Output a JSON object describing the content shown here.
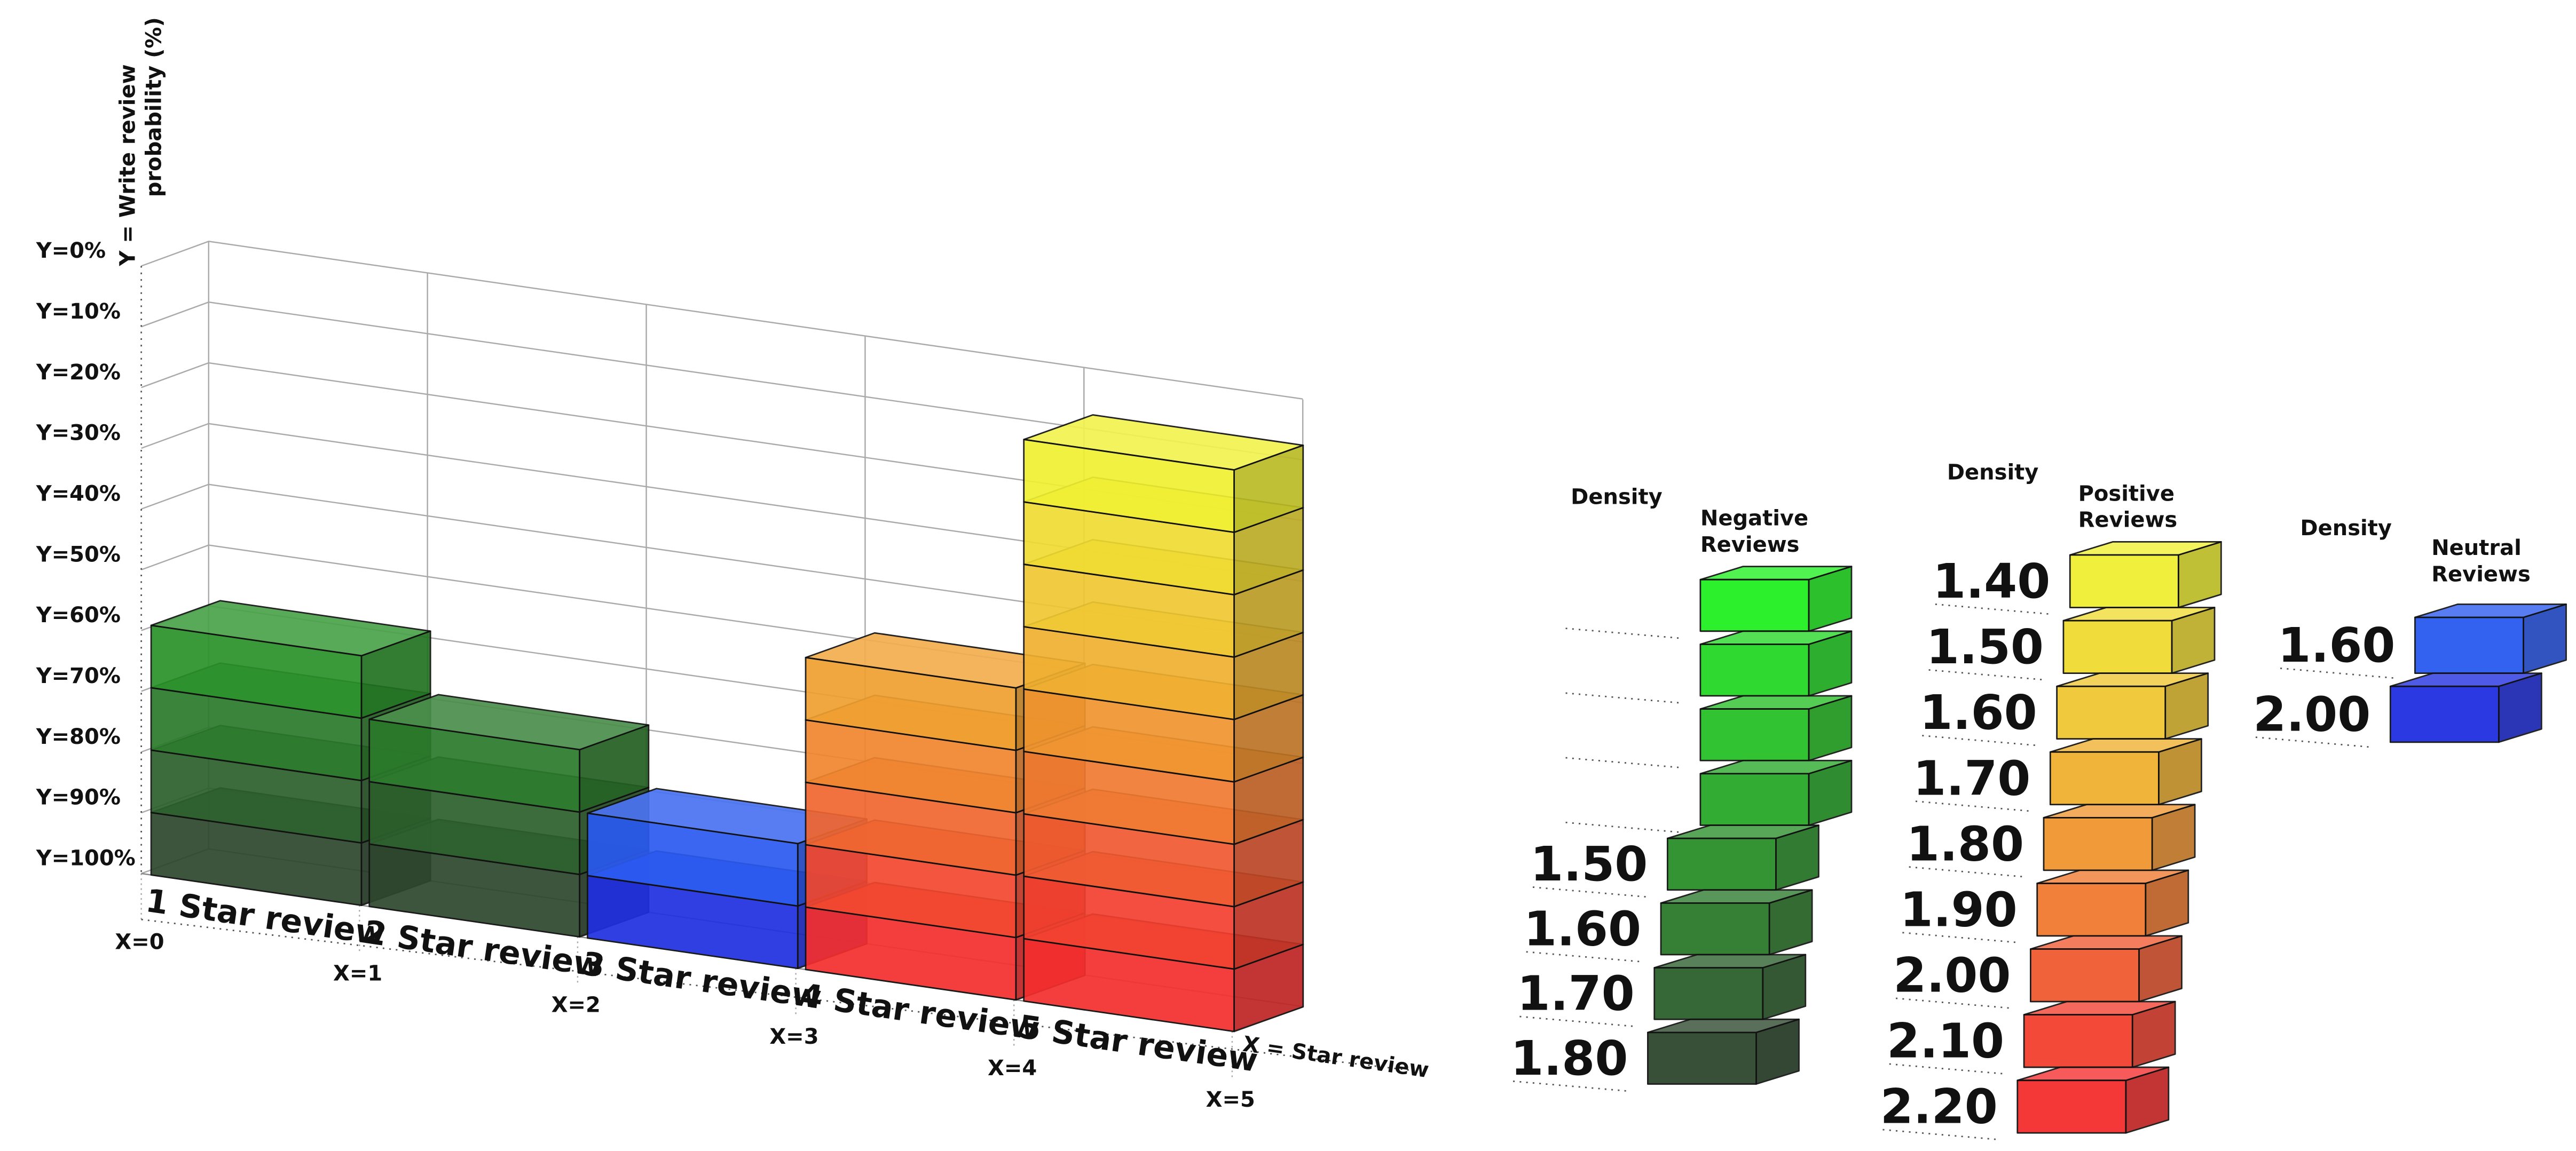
{
  "chart": {
    "y_axis_title": [
      "Y = Write review",
      "probability (%)"
    ],
    "y_labels": [
      "Y=0%",
      "Y=10%",
      "Y=20%",
      "Y=30%",
      "Y=40%",
      "Y=50%",
      "Y=60%",
      "Y=70%",
      "Y=80%",
      "Y=90%",
      "Y=100%"
    ],
    "x_labels": [
      "X=0",
      "X=1",
      "X=2",
      "X=3",
      "X=4",
      "X=5"
    ],
    "x_axis_title": "X = Star review",
    "columns": [
      {
        "label": "1 Star review",
        "colors": [
          "#2d472d",
          "#2c5f2c",
          "#2b7a2b",
          "#2a922a"
        ]
      },
      {
        "label": "2 Star review",
        "colors": [
          "#2d472d",
          "#2c5f2c",
          "#2b7a2b"
        ]
      },
      {
        "label": "3 Star review",
        "colors": [
          "#1f2fe0",
          "#2a5af0"
        ]
      },
      {
        "label": "4 Star review",
        "colors": [
          "#f42e2e",
          "#f2472e",
          "#f0662f",
          "#f0862f",
          "#f0a030"
        ]
      },
      {
        "label": "5 Star review",
        "colors": [
          "#f42e2e",
          "#f2402f",
          "#f05a30",
          "#f07a30",
          "#f0952f",
          "#f0b030",
          "#f0c832",
          "#f0dc32",
          "#f0f032"
        ]
      }
    ]
  },
  "legends": [
    {
      "density_title": "Density",
      "title": [
        "Negative",
        "Reviews"
      ],
      "blocks": [
        {
          "color": "#22f022"
        },
        {
          "color": "#25d825"
        },
        {
          "color": "#27c027"
        },
        {
          "color": "#28a828"
        },
        {
          "color": "#2a8f2a",
          "density": "1.50"
        },
        {
          "color": "#2b7a2b",
          "density": "1.60"
        },
        {
          "color": "#2c5f2c",
          "density": "1.70"
        },
        {
          "color": "#2d472d",
          "density": "1.80"
        }
      ]
    },
    {
      "density_title": "Density",
      "title": [
        "Positive",
        "Reviews"
      ],
      "blocks": [
        {
          "color": "#f0f032",
          "density": "1.40"
        },
        {
          "color": "#f0dc32",
          "density": "1.50"
        },
        {
          "color": "#f0c832",
          "density": "1.60"
        },
        {
          "color": "#f0b030",
          "density": "1.70"
        },
        {
          "color": "#f0952f",
          "density": "1.80"
        },
        {
          "color": "#f07a30",
          "density": "1.90"
        },
        {
          "color": "#f05a30",
          "density": "2.00"
        },
        {
          "color": "#f2402f",
          "density": "2.10"
        },
        {
          "color": "#f42e2e",
          "density": "2.20"
        }
      ]
    },
    {
      "density_title": "Density",
      "title": [
        "Neutral",
        "Reviews"
      ],
      "blocks": [
        {
          "color": "#2a5af0",
          "density": "1.60"
        },
        {
          "color": "#1f2fe0",
          "density": "2.00"
        }
      ]
    }
  ]
}
